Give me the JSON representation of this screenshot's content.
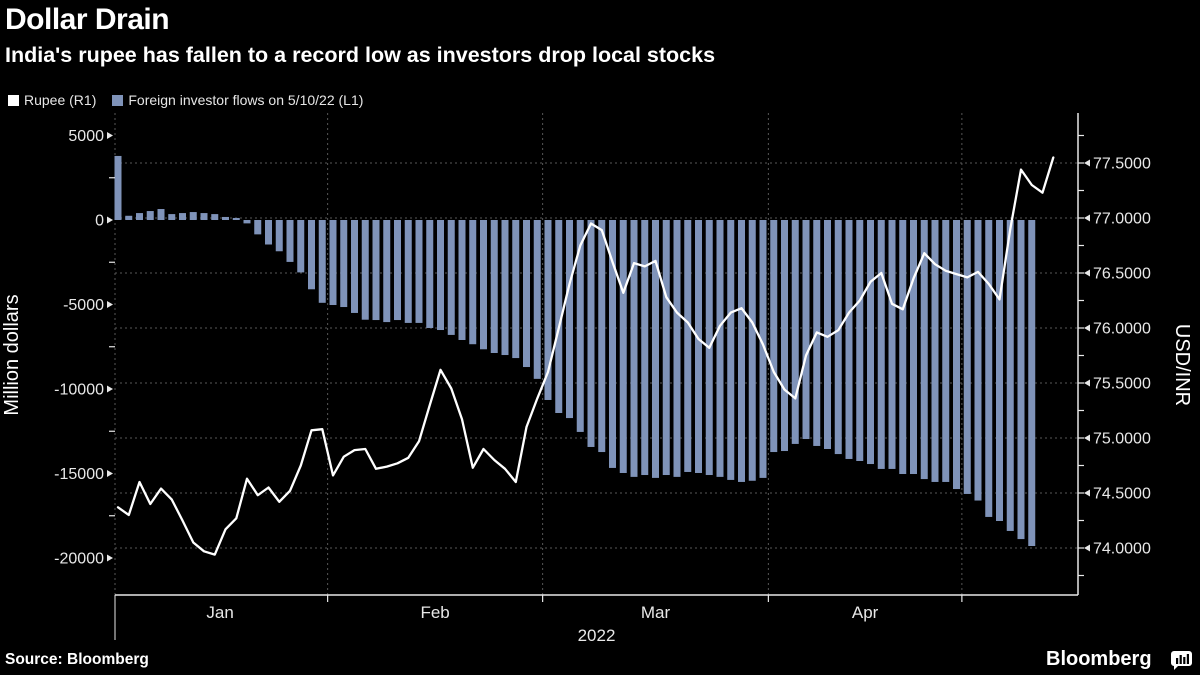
{
  "header": {
    "title": "Dollar Drain",
    "subtitle": "India's rupee has fallen to a record low as investors drop local stocks"
  },
  "legend": {
    "items": [
      {
        "label": "Rupee (R1)",
        "color": "#ffffff"
      },
      {
        "label": "Foreign investor flows on 5/10/22 (L1)",
        "color": "#7f93b9"
      }
    ]
  },
  "footer": {
    "source": "Source:  Bloomberg",
    "brand": "Bloomberg"
  },
  "colors": {
    "background": "#000000",
    "bar": "#7f93b9",
    "line": "#ffffff",
    "grid": "#575757",
    "axis": "#e8e8e8",
    "tick_text": "#e8e8e8"
  },
  "chart_data": {
    "type": "combo",
    "title": "Dollar Drain",
    "x_axis": {
      "months": [
        "Jan",
        "Feb",
        "Mar",
        "Apr"
      ],
      "year": "2022",
      "month_start_indices": [
        0,
        20,
        40,
        61,
        79
      ]
    },
    "left_axis": {
      "label": "Million dollars",
      "ticks": [
        5000,
        0,
        -5000,
        -10000,
        -15000,
        -20000
      ],
      "minor_ticks": [
        2500,
        -2500,
        -7500,
        -12500,
        -17500
      ],
      "range": [
        -21500,
        6400
      ]
    },
    "right_axis": {
      "label": "USD/INR",
      "ticks": [
        77.5,
        77.0,
        76.5,
        76.0,
        75.5,
        75.0,
        74.5,
        74.0
      ],
      "minor_ticks": [
        77.75,
        77.25,
        76.75,
        76.25,
        75.75,
        75.25,
        74.75,
        74.25,
        73.75
      ],
      "range": [
        73.6,
        77.95
      ]
    },
    "series": [
      {
        "name": "Foreign investor flows on 5/10/22 (L1)",
        "type": "bar",
        "axis": "left",
        "color": "#7f93b9",
        "values": [
          3790,
          250,
          410,
          530,
          650,
          350,
          410,
          470,
          410,
          350,
          180,
          120,
          -200,
          -850,
          -1450,
          -1850,
          -2480,
          -3100,
          -4100,
          -4900,
          -5030,
          -5150,
          -5500,
          -5900,
          -5920,
          -6040,
          -5920,
          -6090,
          -6090,
          -6390,
          -6510,
          -6800,
          -7100,
          -7350,
          -7650,
          -7870,
          -7990,
          -8170,
          -8700,
          -9400,
          -10650,
          -11420,
          -11720,
          -12540,
          -13430,
          -13730,
          -14670,
          -14970,
          -15200,
          -15090,
          -15260,
          -15090,
          -15200,
          -14910,
          -14970,
          -15090,
          -15200,
          -15380,
          -15500,
          -15430,
          -15260,
          -13730,
          -13670,
          -13250,
          -12960,
          -13370,
          -13550,
          -13850,
          -14140,
          -14260,
          -14440,
          -14730,
          -14730,
          -15030,
          -15030,
          -15330,
          -15500,
          -15500,
          -15920,
          -16210,
          -16600,
          -17570,
          -17810,
          -18400,
          -18880,
          -19290
        ]
      },
      {
        "name": "Rupee (R1)",
        "type": "line",
        "axis": "right",
        "color": "#ffffff",
        "values": [
          74.37,
          74.3,
          74.6,
          74.4,
          74.54,
          74.44,
          74.25,
          74.05,
          73.97,
          73.94,
          74.17,
          74.27,
          74.63,
          74.48,
          74.55,
          74.42,
          74.52,
          74.75,
          75.07,
          75.08,
          74.66,
          74.83,
          74.89,
          74.9,
          74.72,
          74.74,
          74.77,
          74.82,
          74.97,
          75.3,
          75.62,
          75.45,
          75.17,
          74.73,
          74.9,
          74.8,
          74.72,
          74.6,
          75.1,
          75.36,
          75.6,
          76.0,
          76.4,
          76.75,
          76.95,
          76.89,
          76.6,
          76.32,
          76.59,
          76.56,
          76.61,
          76.28,
          76.14,
          76.05,
          75.9,
          75.82,
          76.02,
          76.14,
          76.18,
          76.05,
          75.85,
          75.6,
          75.44,
          75.36,
          75.75,
          75.96,
          75.92,
          75.98,
          76.14,
          76.25,
          76.42,
          76.5,
          76.22,
          76.17,
          76.45,
          76.68,
          76.58,
          76.52,
          76.49,
          76.46,
          76.51,
          76.4,
          76.26,
          76.9,
          77.44,
          77.3,
          77.23,
          77.55
        ]
      }
    ]
  }
}
